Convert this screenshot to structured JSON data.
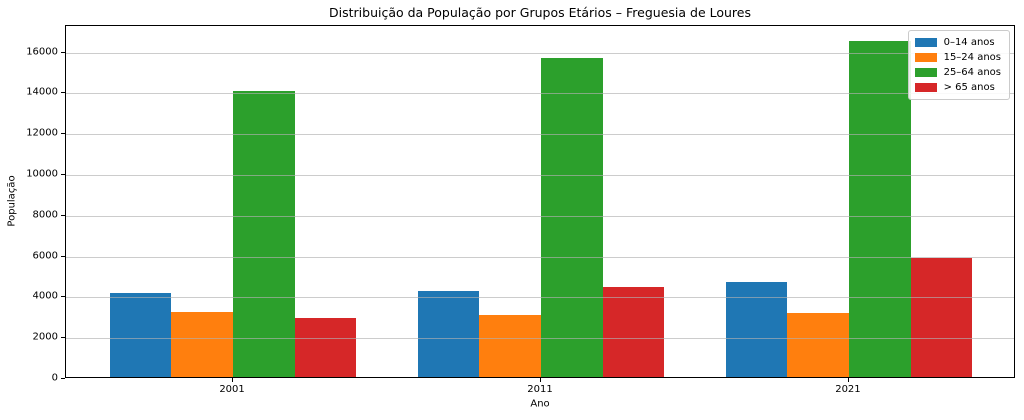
{
  "chart_data": {
    "type": "bar",
    "title": "Distribuição da População por Grupos Etários – Freguesia de Loures",
    "xlabel": "Ano",
    "ylabel": "População",
    "categories": [
      "2001",
      "2011",
      "2021"
    ],
    "series": [
      {
        "name": "0–14 anos",
        "color": "#1f77b4",
        "values": [
          4100,
          4200,
          4650
        ]
      },
      {
        "name": "15–24 anos",
        "color": "#ff7f0e",
        "values": [
          3200,
          3050,
          3150
        ]
      },
      {
        "name": "25–64 anos",
        "color": "#2ca02c",
        "values": [
          14000,
          15650,
          16450
        ]
      },
      {
        "name": "> 65 anos",
        "color": "#d62728",
        "values": [
          2900,
          4400,
          5850
        ]
      }
    ],
    "ylim": [
      0,
      17300
    ],
    "yticks": [
      0,
      2000,
      4000,
      6000,
      8000,
      10000,
      12000,
      14000,
      16000
    ],
    "grid": true,
    "grid_color": "#b0b0b0",
    "legend_position": "upper right",
    "background_color": "#ffffff"
  }
}
